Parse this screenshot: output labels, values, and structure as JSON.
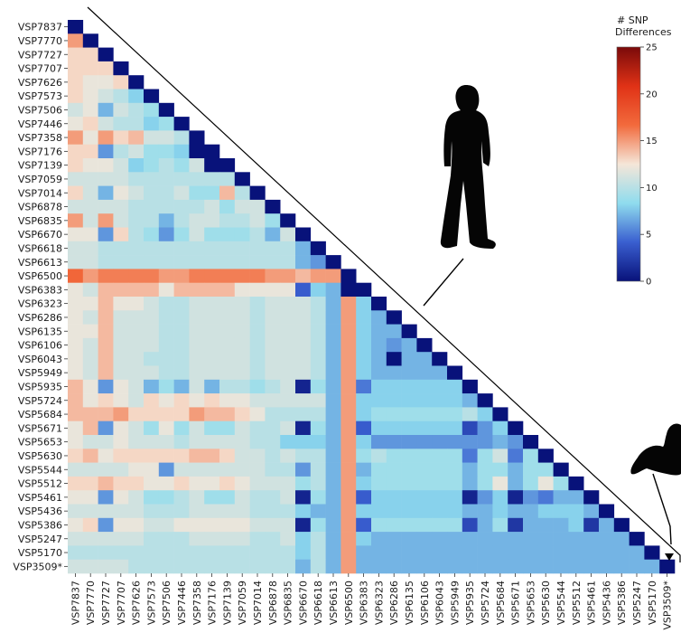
{
  "chart_data": {
    "type": "heatmap",
    "layout": "lower-triangular, diagonal = 0",
    "labels": [
      "VSP7837",
      "VSP7770",
      "VSP7727",
      "VSP7707",
      "VSP7626",
      "VSP7573",
      "VSP7506",
      "VSP7446",
      "VSP7358",
      "VSP7176",
      "VSP7139",
      "VSP7059",
      "VSP7014",
      "VSP6878",
      "VSP6835",
      "VSP6670",
      "VSP6618",
      "VSP6613",
      "VSP6500",
      "VSP6383",
      "VSP6323",
      "VSP6286",
      "VSP6135",
      "VSP6106",
      "VSP6043",
      "VSP5949",
      "VSP5935",
      "VSP5724",
      "VSP5684",
      "VSP5671",
      "VSP5653",
      "VSP5630",
      "VSP5544",
      "VSP5512",
      "VSP5461",
      "VSP5436",
      "VSP5386",
      "VSP5247",
      "VSP5170",
      "VSP3509*"
    ],
    "colorbar": {
      "title_lines": [
        "# SNP",
        "Differences"
      ],
      "min": 0,
      "max": 25,
      "ticks": [
        0,
        5,
        10,
        15,
        20,
        25
      ],
      "colors": [
        "#08127a",
        "#3a5fd0",
        "#8fdcee",
        "#f5e6d8",
        "#f26a3c",
        "#e03216",
        "#7a0a0a"
      ]
    },
    "annotations": [
      "human-silhouette-icon",
      "cat-silhouette-icon"
    ],
    "values": [
      [
        0
      ],
      [
        15,
        0
      ],
      [
        13,
        13,
        0
      ],
      [
        13,
        13,
        13,
        0
      ],
      [
        13,
        12,
        12,
        13,
        0
      ],
      [
        13,
        12,
        11,
        10,
        8,
        0
      ],
      [
        11,
        12,
        7,
        11,
        10,
        9,
        0
      ],
      [
        12,
        13,
        11,
        10,
        10,
        8,
        9,
        0
      ],
      [
        15,
        12,
        15,
        13,
        14,
        11,
        11,
        10,
        0
      ],
      [
        13,
        13,
        6,
        10,
        11,
        9,
        9,
        8,
        0,
        0
      ],
      [
        13,
        12,
        12,
        11,
        8,
        9,
        10,
        9,
        11,
        0,
        0
      ],
      [
        11,
        11,
        11,
        11,
        10,
        10,
        10,
        10,
        10,
        10,
        10,
        0
      ],
      [
        13,
        11,
        7,
        12,
        11,
        10,
        10,
        11,
        9,
        9,
        14,
        10,
        0
      ],
      [
        11,
        11,
        11,
        11,
        10,
        10,
        10,
        10,
        10,
        11,
        9,
        11,
        11,
        0
      ],
      [
        15,
        11,
        15,
        11,
        10,
        10,
        7,
        10,
        11,
        11,
        10,
        10,
        11,
        9,
        0
      ],
      [
        12,
        12,
        6,
        13,
        10,
        9,
        6,
        9,
        11,
        9,
        9,
        9,
        10,
        7,
        11,
        0
      ],
      [
        11,
        11,
        10,
        10,
        10,
        10,
        10,
        10,
        10,
        10,
        10,
        10,
        10,
        10,
        10,
        7,
        0
      ],
      [
        11,
        11,
        10,
        10,
        10,
        10,
        10,
        10,
        10,
        10,
        10,
        10,
        10,
        10,
        10,
        7,
        6,
        0
      ],
      [
        17,
        15,
        16,
        16,
        16,
        16,
        15,
        15,
        16,
        16,
        16,
        16,
        16,
        15,
        15,
        14,
        15,
        15,
        0
      ],
      [
        12,
        11,
        14,
        14,
        14,
        14,
        12,
        14,
        14,
        14,
        14,
        12,
        12,
        12,
        12,
        4,
        8,
        7,
        0,
        0
      ],
      [
        12,
        12,
        14,
        12,
        12,
        11,
        10,
        10,
        11,
        11,
        11,
        11,
        10,
        11,
        11,
        11,
        10,
        7,
        15,
        8,
        0
      ],
      [
        12,
        11,
        14,
        11,
        11,
        11,
        10,
        10,
        11,
        11,
        11,
        11,
        10,
        11,
        11,
        11,
        10,
        7,
        15,
        8,
        7,
        0
      ],
      [
        12,
        12,
        14,
        11,
        11,
        11,
        10,
        10,
        11,
        11,
        11,
        11,
        10,
        11,
        11,
        11,
        10,
        7,
        15,
        8,
        7,
        7,
        0
      ],
      [
        12,
        11,
        14,
        11,
        11,
        11,
        10,
        10,
        11,
        11,
        11,
        11,
        10,
        11,
        11,
        11,
        10,
        7,
        15,
        8,
        7,
        6,
        7,
        0
      ],
      [
        12,
        11,
        14,
        11,
        11,
        10,
        10,
        10,
        11,
        11,
        11,
        11,
        10,
        11,
        11,
        11,
        10,
        7,
        15,
        8,
        7,
        0,
        7,
        7,
        0
      ],
      [
        12,
        11,
        14,
        11,
        11,
        11,
        10,
        10,
        11,
        11,
        11,
        11,
        10,
        11,
        11,
        11,
        10,
        7,
        15,
        8,
        7,
        7,
        7,
        7,
        7,
        0
      ],
      [
        14,
        12,
        6,
        12,
        11,
        7,
        9,
        7,
        11,
        7,
        10,
        10,
        9,
        10,
        11,
        1,
        9,
        7,
        15,
        5,
        8,
        8,
        8,
        8,
        8,
        8,
        0
      ],
      [
        14,
        12,
        13,
        12,
        11,
        13,
        12,
        13,
        12,
        13,
        12,
        12,
        11,
        11,
        11,
        11,
        11,
        7,
        15,
        8,
        8,
        8,
        8,
        8,
        8,
        8,
        7,
        0
      ],
      [
        14,
        14,
        14,
        15,
        13,
        13,
        13,
        13,
        15,
        14,
        14,
        13,
        12,
        10,
        10,
        10,
        10,
        7,
        15,
        8,
        9,
        9,
        9,
        9,
        9,
        9,
        10,
        8,
        0
      ],
      [
        12,
        14,
        6,
        12,
        11,
        9,
        12,
        9,
        11,
        9,
        9,
        11,
        10,
        10,
        11,
        1,
        9,
        7,
        15,
        4,
        8,
        8,
        8,
        8,
        8,
        8,
        3,
        6,
        8,
        0
      ],
      [
        12,
        11,
        11,
        12,
        11,
        11,
        11,
        10,
        11,
        11,
        11,
        11,
        10,
        10,
        8,
        8,
        8,
        7,
        15,
        8,
        6,
        6,
        6,
        6,
        6,
        6,
        6,
        6,
        7,
        6,
        0
      ],
      [
        13,
        14,
        12,
        13,
        13,
        13,
        13,
        13,
        14,
        14,
        13,
        11,
        11,
        10,
        11,
        10,
        10,
        7,
        15,
        9,
        10,
        9,
        9,
        9,
        9,
        9,
        5,
        9,
        11,
        5,
        9,
        0
      ],
      [
        11,
        11,
        11,
        11,
        12,
        12,
        6,
        11,
        11,
        11,
        11,
        11,
        11,
        10,
        10,
        6,
        10,
        7,
        15,
        7,
        9,
        9,
        9,
        9,
        9,
        9,
        7,
        9,
        9,
        7,
        9,
        9,
        0
      ],
      [
        13,
        13,
        14,
        13,
        13,
        12,
        12,
        13,
        12,
        12,
        13,
        12,
        11,
        11,
        11,
        9,
        10,
        7,
        15,
        8,
        9,
        9,
        9,
        9,
        9,
        9,
        7,
        9,
        12,
        7,
        9,
        12,
        9,
        0
      ],
      [
        12,
        12,
        6,
        12,
        11,
        9,
        9,
        10,
        11,
        9,
        9,
        11,
        10,
        10,
        11,
        1,
        9,
        7,
        15,
        4,
        8,
        8,
        8,
        8,
        8,
        8,
        1,
        6,
        8,
        1,
        6,
        5,
        7,
        7,
        0
      ],
      [
        11,
        11,
        11,
        11,
        11,
        10,
        10,
        10,
        11,
        11,
        11,
        11,
        10,
        10,
        10,
        8,
        7,
        7,
        15,
        8,
        8,
        8,
        8,
        8,
        8,
        8,
        7,
        7,
        8,
        7,
        7,
        8,
        8,
        8,
        7,
        0
      ],
      [
        12,
        13,
        6,
        12,
        12,
        11,
        11,
        12,
        12,
        12,
        12,
        12,
        11,
        11,
        11,
        1,
        9,
        7,
        15,
        4,
        9,
        9,
        9,
        9,
        9,
        9,
        3,
        7,
        9,
        2,
        7,
        7,
        7,
        8,
        2,
        7,
        0
      ],
      [
        11,
        11,
        11,
        11,
        11,
        10,
        10,
        10,
        11,
        11,
        11,
        11,
        10,
        10,
        11,
        8,
        10,
        7,
        15,
        8,
        7,
        7,
        7,
        7,
        7,
        7,
        7,
        7,
        7,
        7,
        7,
        7,
        7,
        7,
        7,
        7,
        7,
        0
      ],
      [
        10,
        10,
        10,
        10,
        10,
        10,
        10,
        10,
        10,
        10,
        10,
        10,
        10,
        10,
        10,
        8,
        10,
        7,
        15,
        7,
        7,
        7,
        7,
        7,
        7,
        7,
        7,
        7,
        7,
        7,
        7,
        7,
        7,
        7,
        7,
        7,
        7,
        7,
        0
      ],
      [
        11,
        11,
        11,
        11,
        10,
        10,
        10,
        10,
        10,
        10,
        10,
        10,
        10,
        10,
        10,
        7,
        10,
        7,
        15,
        7,
        7,
        7,
        7,
        7,
        7,
        7,
        7,
        7,
        7,
        7,
        7,
        7,
        7,
        7,
        7,
        7,
        7,
        7,
        7,
        0
      ]
    ]
  }
}
